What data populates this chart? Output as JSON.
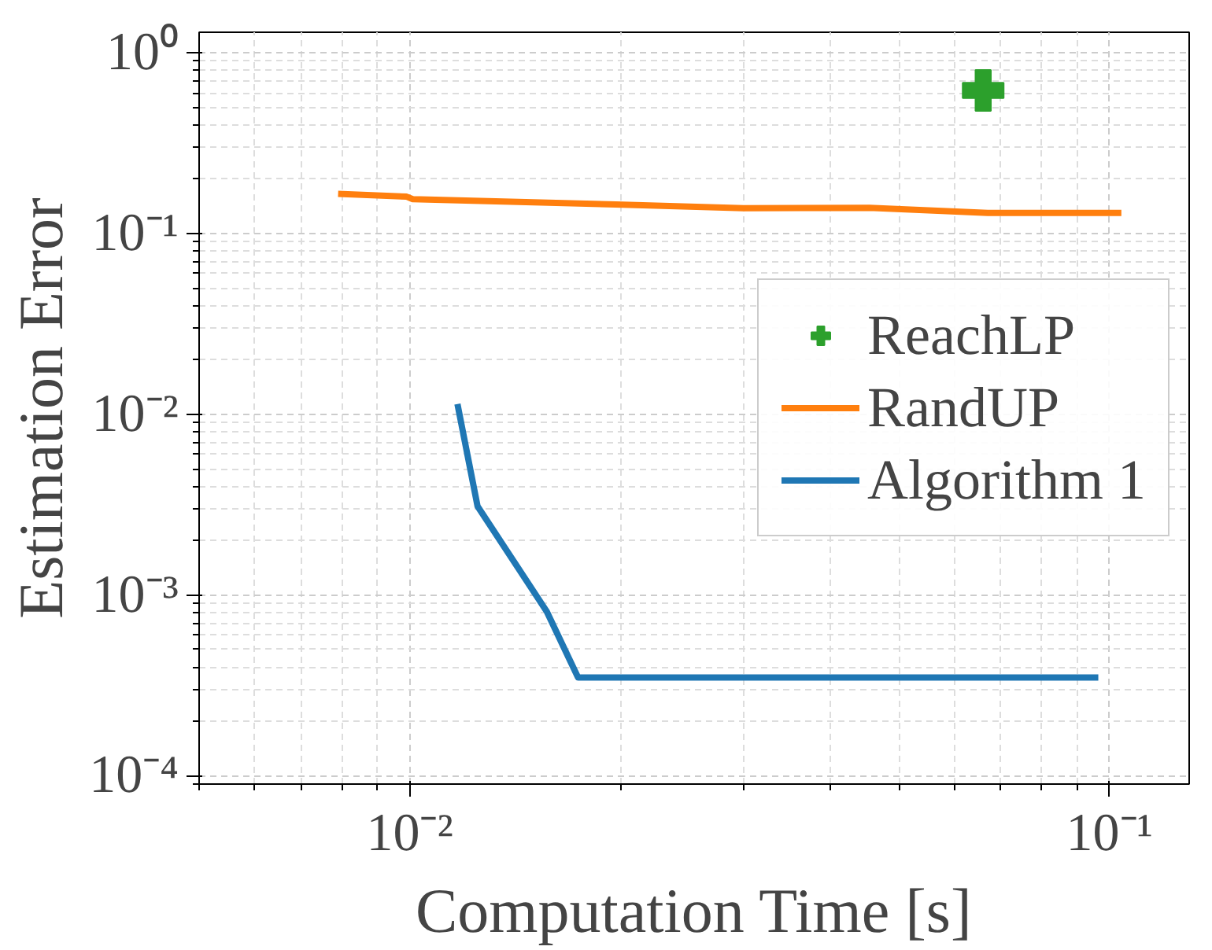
{
  "chart_data": {
    "type": "line",
    "xlabel": "Computation Time [s]",
    "ylabel": "Estimation Error",
    "log": "xy",
    "grid": true,
    "legend": "right",
    "xlim": [
      0.005,
      0.13
    ],
    "ylim": [
      9e-05,
      1.3
    ],
    "xticks": [
      {
        "value": 0.01,
        "label": "10⁻²"
      },
      {
        "value": 0.1,
        "label": "10⁻¹"
      }
    ],
    "yticks": [
      {
        "value": 0.0001,
        "label": "10⁻⁴"
      },
      {
        "value": 0.001,
        "label": "10⁻³"
      },
      {
        "value": 0.01,
        "label": "10⁻²"
      },
      {
        "value": 0.1,
        "label": "10⁻¹"
      },
      {
        "value": 1,
        "label": "10⁰"
      }
    ],
    "series": [
      {
        "name": "ReachLP",
        "type": "scatter",
        "marker": "cross",
        "color": "#2ca02c",
        "x": [
          0.066
        ],
        "values": [
          0.62
        ]
      },
      {
        "name": "RandUP",
        "color": "#ff7f0e",
        "x": [
          0.0079,
          0.0099,
          0.0101,
          0.0197,
          0.03,
          0.0454,
          0.067,
          0.104
        ],
        "values": [
          0.166,
          0.16,
          0.155,
          0.145,
          0.138,
          0.139,
          0.13,
          0.13
        ]
      },
      {
        "name": "Algorithm 1",
        "color": "#1f77b4",
        "x": [
          0.0117,
          0.0125,
          0.0157,
          0.0174,
          0.0964
        ],
        "values": [
          0.0114,
          0.0031,
          0.00081,
          0.00035,
          0.00035
        ]
      }
    ]
  }
}
